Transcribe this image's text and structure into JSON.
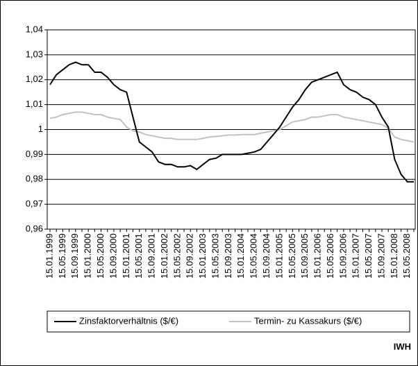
{
  "chart_data": {
    "type": "line",
    "categories": [
      "15.01.1999",
      null,
      "15.05.1999",
      null,
      "15.09.1999",
      null,
      "15.01.2000",
      null,
      "15.05.2000",
      null,
      "15.09.2000",
      null,
      "15.01.2001",
      null,
      "15.05.2001",
      null,
      "15.09.2001",
      null,
      "15.01.2002",
      null,
      "15.05.2002",
      null,
      "15.09.2002",
      null,
      "15.01.2003",
      null,
      "15.05.2003",
      null,
      "15.09.2003",
      null,
      "15.01.2004",
      null,
      "15.05.2004",
      null,
      "15.09.2004",
      null,
      "15.01.2005",
      null,
      "15.05.2005",
      null,
      "15.09.2005",
      null,
      "15.01.2006",
      null,
      "15.05.2006",
      null,
      "15.09.2006",
      null,
      "15.01.2007",
      null,
      "15.05.2007",
      null,
      "15.09.2007",
      null,
      "15.01.2008",
      null,
      "15.05.2008",
      null
    ],
    "series": [
      {
        "name": "Zinsfaktorverhältnis ($/€)",
        "color": "#000000",
        "values": [
          1.018,
          1.022,
          1.024,
          1.026,
          1.027,
          1.026,
          1.026,
          1.023,
          1.023,
          1.021,
          1.018,
          1.016,
          1.015,
          1.005,
          0.995,
          0.993,
          0.991,
          0.987,
          0.986,
          0.986,
          0.985,
          0.985,
          0.9855,
          0.984,
          0.986,
          0.988,
          0.9885,
          0.99,
          0.99,
          0.99,
          0.99,
          0.9905,
          0.991,
          0.992,
          0.995,
          0.998,
          1.001,
          1.005,
          1.009,
          1.012,
          1.016,
          1.019,
          1.02,
          1.021,
          1.022,
          1.023,
          1.018,
          1.016,
          1.015,
          1.013,
          1.012,
          1.01,
          1.005,
          1.001,
          0.988,
          0.982,
          0.979,
          0.979
        ]
      },
      {
        "name": "Termin- zu Kassakurs ($/€)",
        "color": "#c0c0c0",
        "values": [
          1.0045,
          1.005,
          1.006,
          1.0065,
          1.007,
          1.007,
          1.0065,
          1.006,
          1.006,
          1.005,
          1.0045,
          1.004,
          1.001,
          0.9995,
          0.999,
          0.998,
          0.9975,
          0.997,
          0.9965,
          0.9965,
          0.996,
          0.996,
          0.996,
          0.996,
          0.9965,
          0.997,
          0.9972,
          0.9975,
          0.9978,
          0.9978,
          0.998,
          0.998,
          0.998,
          0.9985,
          0.999,
          0.9995,
          1.0,
          1.0015,
          1.003,
          1.0035,
          1.004,
          1.005,
          1.005,
          1.0055,
          1.006,
          1.006,
          1.005,
          1.0045,
          1.004,
          1.0035,
          1.003,
          1.0025,
          1.002,
          1.0005,
          0.997,
          0.996,
          0.9955,
          0.995
        ]
      }
    ],
    "ylim": [
      0.96,
      1.04
    ],
    "yticks": [
      {
        "value": 0.96,
        "label": "0,96"
      },
      {
        "value": 0.97,
        "label": "0,97"
      },
      {
        "value": 0.98,
        "label": "0,98"
      },
      {
        "value": 0.99,
        "label": "0,99"
      },
      1,
      {
        "value": 1.01,
        "label": "1,01"
      },
      {
        "value": 1.02,
        "label": "1,02"
      },
      {
        "value": 1.03,
        "label": "1,03"
      },
      {
        "value": 1.04,
        "label": "1,04"
      }
    ],
    "grid": true,
    "source": "IWH"
  }
}
